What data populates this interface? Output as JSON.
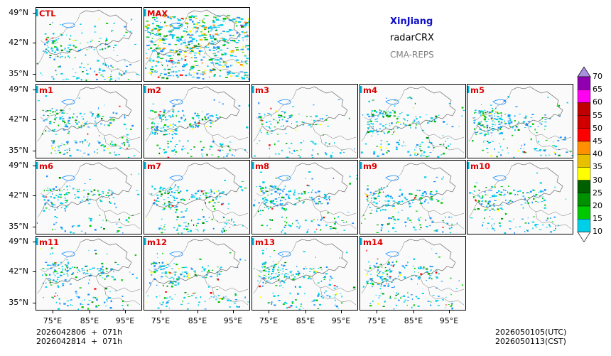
{
  "region_title": "XinJiang",
  "product": "radarCRX",
  "system": "CMA-REPS",
  "panels": [
    {
      "label": "CTL",
      "intensity": 0.25
    },
    {
      "label": "MAX",
      "intensity": 1.0
    },
    {
      "label": "m1",
      "intensity": 0.3
    },
    {
      "label": "m2",
      "intensity": 0.3
    },
    {
      "label": "m3",
      "intensity": 0.15
    },
    {
      "label": "m4",
      "intensity": 0.3
    },
    {
      "label": "m5",
      "intensity": 0.35
    },
    {
      "label": "m6",
      "intensity": 0.2
    },
    {
      "label": "m7",
      "intensity": 0.3
    },
    {
      "label": "m8",
      "intensity": 0.3
    },
    {
      "label": "m9",
      "intensity": 0.25
    },
    {
      "label": "m10",
      "intensity": 0.25
    },
    {
      "label": "m11",
      "intensity": 0.3
    },
    {
      "label": "m12",
      "intensity": 0.25
    },
    {
      "label": "m13",
      "intensity": 0.3
    },
    {
      "label": "m14",
      "intensity": 0.3
    }
  ],
  "lat_labels": [
    "49°N",
    "42°N",
    "35°N"
  ],
  "lon_labels": [
    "75°E",
    "85°E",
    "95°E"
  ],
  "init_time_1": "2026042806  +  071h",
  "init_time_2": "2026042814  +  071h",
  "valid_utc": "2026050105(UTC)",
  "valid_cst": "2026050113(CST)",
  "colorbar": {
    "levels": [
      "10",
      "15",
      "20",
      "25",
      "30",
      "35",
      "40",
      "45",
      "50",
      "55",
      "60",
      "65",
      "70"
    ],
    "colors": [
      "#1e90ff",
      "#00cfe8",
      "#00c800",
      "#009000",
      "#006000",
      "#ffff00",
      "#e8c000",
      "#ff9000",
      "#ff0000",
      "#d00000",
      "#c00000",
      "#ff00f0",
      "#9000b0",
      "#a890e0"
    ]
  }
}
